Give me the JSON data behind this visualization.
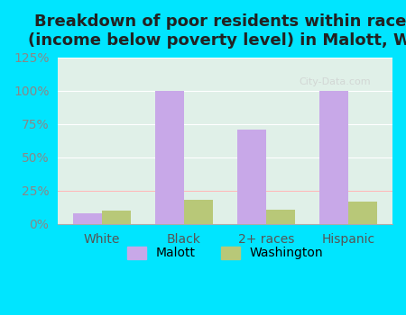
{
  "title": "Breakdown of poor residents within races\n(income below poverty level) in Malott, WA",
  "categories": [
    "White",
    "Black",
    "2+ races",
    "Hispanic"
  ],
  "malott_values": [
    8,
    100,
    71,
    100
  ],
  "washington_values": [
    10,
    18,
    11,
    17
  ],
  "malott_color": "#c8a8e8",
  "washington_color": "#b8c878",
  "ylim": [
    0,
    125
  ],
  "yticks": [
    0,
    25,
    50,
    75,
    100,
    125
  ],
  "ytick_labels": [
    "0%",
    "25%",
    "50%",
    "75%",
    "100%",
    "125%"
  ],
  "bg_outer": "#00e5ff",
  "bg_plot": "#e0f0e8",
  "bar_width": 0.35,
  "title_fontsize": 13,
  "tick_fontsize": 10,
  "legend_fontsize": 10
}
